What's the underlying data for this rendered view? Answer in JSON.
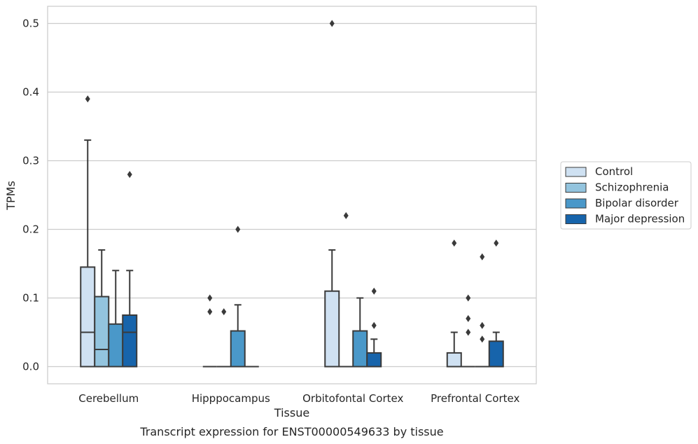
{
  "chart_data": {
    "type": "boxplot",
    "title": "",
    "xlabel": "Tissue",
    "ylabel": "TPMs",
    "caption": "Transcript expression for ENST00000549633 by tissue",
    "ylim": [
      -0.025,
      0.525
    ],
    "yticks": [
      0.0,
      0.1,
      0.2,
      0.3,
      0.4,
      0.5
    ],
    "ytick_labels": [
      "0.0",
      "0.1",
      "0.2",
      "0.3",
      "0.4",
      "0.5"
    ],
    "grid": "horizontal",
    "legend_position": "right",
    "categories": [
      "Cerebellum",
      "Hipppocampus",
      "Orbitofontal Cortex",
      "Prefrontal Cortex"
    ],
    "series": [
      {
        "name": "Control",
        "color": "#cfe1f2",
        "boxes": [
          {
            "q1": 0.0,
            "median": 0.05,
            "q3": 0.145,
            "whisker_low": 0.0,
            "whisker_high": 0.33,
            "outliers": [
              0.39
            ]
          },
          {
            "q1": 0.0,
            "median": 0.0,
            "q3": 0.0,
            "whisker_low": 0.0,
            "whisker_high": 0.0,
            "outliers": [
              0.1,
              0.08
            ]
          },
          {
            "q1": 0.0,
            "median": 0.0,
            "q3": 0.11,
            "whisker_low": 0.0,
            "whisker_high": 0.17,
            "outliers": [
              0.5
            ]
          },
          {
            "q1": 0.0,
            "median": 0.0,
            "q3": 0.02,
            "whisker_low": 0.0,
            "whisker_high": 0.05,
            "outliers": [
              0.18
            ]
          }
        ]
      },
      {
        "name": "Schizophrenia",
        "color": "#93c4de",
        "boxes": [
          {
            "q1": 0.0,
            "median": 0.025,
            "q3": 0.102,
            "whisker_low": 0.0,
            "whisker_high": 0.17,
            "outliers": []
          },
          {
            "q1": 0.0,
            "median": 0.0,
            "q3": 0.0,
            "whisker_low": 0.0,
            "whisker_high": 0.0,
            "outliers": [
              0.08
            ]
          },
          {
            "q1": 0.0,
            "median": 0.0,
            "q3": 0.0,
            "whisker_low": 0.0,
            "whisker_high": 0.0,
            "outliers": [
              0.22
            ]
          },
          {
            "q1": 0.0,
            "median": 0.0,
            "q3": 0.0,
            "whisker_low": 0.0,
            "whisker_high": 0.0,
            "outliers": [
              0.1,
              0.07,
              0.05
            ]
          }
        ]
      },
      {
        "name": "Bipolar disorder",
        "color": "#4a98c9",
        "boxes": [
          {
            "q1": 0.0,
            "median": 0.0,
            "q3": 0.062,
            "whisker_low": 0.0,
            "whisker_high": 0.14,
            "outliers": []
          },
          {
            "q1": 0.0,
            "median": 0.0,
            "q3": 0.052,
            "whisker_low": 0.0,
            "whisker_high": 0.09,
            "outliers": [
              0.2
            ]
          },
          {
            "q1": 0.0,
            "median": 0.0,
            "q3": 0.052,
            "whisker_low": 0.0,
            "whisker_high": 0.1,
            "outliers": []
          },
          {
            "q1": 0.0,
            "median": 0.0,
            "q3": 0.0,
            "whisker_low": 0.0,
            "whisker_high": 0.0,
            "outliers": [
              0.16,
              0.06,
              0.04
            ]
          }
        ]
      },
      {
        "name": "Major depression",
        "color": "#1764ab",
        "boxes": [
          {
            "q1": 0.0,
            "median": 0.05,
            "q3": 0.075,
            "whisker_low": 0.0,
            "whisker_high": 0.14,
            "outliers": [
              0.28
            ]
          },
          {
            "q1": 0.0,
            "median": 0.0,
            "q3": 0.0,
            "whisker_low": 0.0,
            "whisker_high": 0.0,
            "outliers": []
          },
          {
            "q1": 0.0,
            "median": 0.0,
            "q3": 0.02,
            "whisker_low": 0.0,
            "whisker_high": 0.04,
            "outliers": [
              0.11,
              0.06
            ]
          },
          {
            "q1": 0.0,
            "median": 0.0,
            "q3": 0.037,
            "whisker_low": 0.0,
            "whisker_high": 0.05,
            "outliers": [
              0.18
            ]
          }
        ]
      }
    ]
  }
}
